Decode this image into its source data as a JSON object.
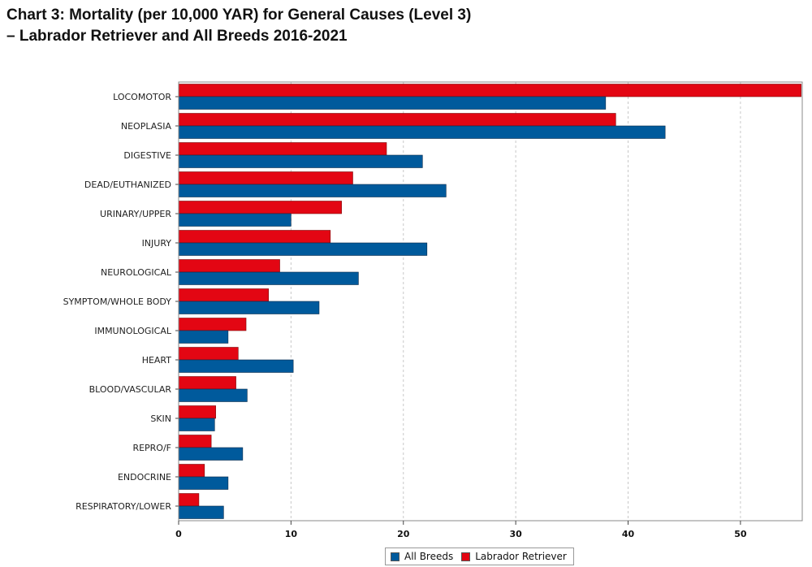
{
  "title": {
    "line1": "Chart 3: Mortality (per 10,000 YAR) for General Causes (Level 3)",
    "line2": "–  Labrador Retriever and All Breeds 2016-2021"
  },
  "chart_data": {
    "type": "bar",
    "orientation": "horizontal",
    "title": "Chart 3: Mortality (per 10,000 YAR) for General Causes (Level 3) –  Labrador Retriever and All Breeds 2016-2021",
    "xlabel": "",
    "ylabel": "",
    "xlim": [
      0,
      55.5
    ],
    "x_ticks": [
      0,
      10,
      20,
      30,
      40,
      50
    ],
    "grid": "vertical dashed",
    "legend_position": "bottom-center",
    "categories": [
      "LOCOMOTOR",
      "NEOPLASIA",
      "DIGESTIVE",
      "DEAD/EUTHANIZED",
      "URINARY/UPPER",
      "INJURY",
      "NEUROLOGICAL",
      "SYMPTOM/WHOLE BODY",
      "IMMUNOLOGICAL",
      "HEART",
      "BLOOD/VASCULAR",
      "SKIN",
      "REPRO/F",
      "ENDOCRINE",
      "RESPIRATORY/LOWER"
    ],
    "series": [
      {
        "name": "Labrador Retriever",
        "color": "#e30613",
        "values": [
          55.4,
          38.9,
          18.5,
          15.5,
          14.5,
          13.5,
          9.0,
          8.0,
          6.0,
          5.3,
          5.1,
          3.3,
          2.9,
          2.3,
          1.8
        ]
      },
      {
        "name": "All Breeds",
        "color": "#005a9c",
        "values": [
          38.0,
          43.3,
          21.7,
          23.8,
          10.0,
          22.1,
          16.0,
          12.5,
          4.4,
          10.2,
          6.1,
          3.2,
          5.7,
          4.4,
          4.0
        ]
      }
    ]
  },
  "legend": {
    "items": [
      {
        "label": "All Breeds",
        "color": "#005a9c"
      },
      {
        "label": "Labrador Retriever",
        "color": "#e30613"
      }
    ]
  }
}
